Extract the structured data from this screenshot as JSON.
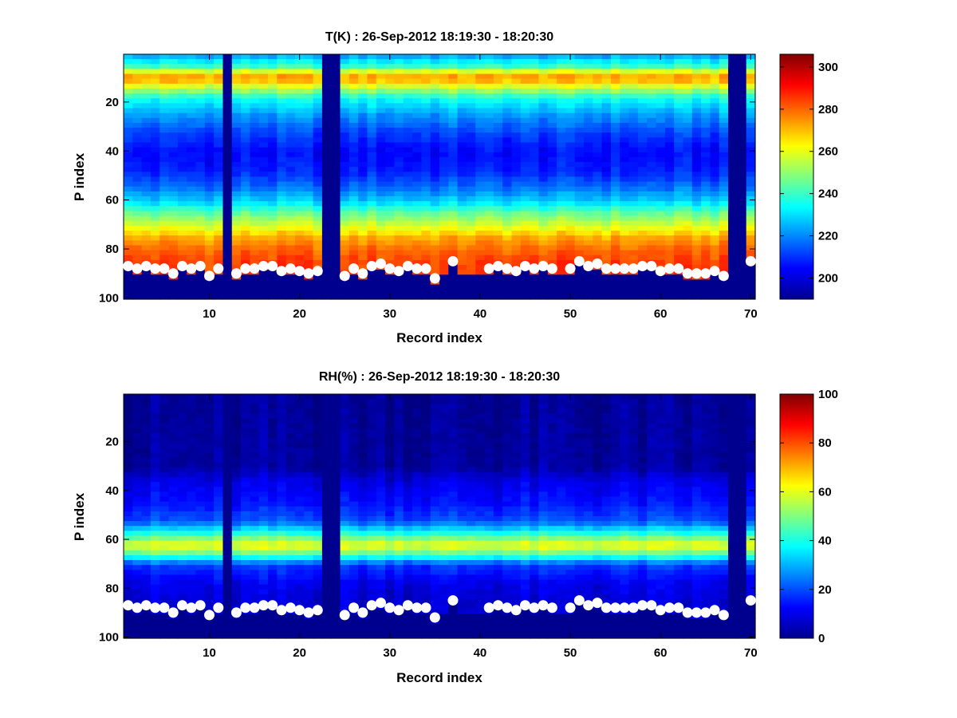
{
  "figure": {
    "panels": [
      "temperature",
      "humidity"
    ]
  },
  "chart_data": [
    {
      "type": "heatmap",
      "title": "T(K) : 26-Sep-2012 18:19:30 - 18:20:30",
      "xlabel": "Record index",
      "ylabel": "P index",
      "xlim": [
        0.5,
        70.5
      ],
      "ylim": [
        100.5,
        0.5
      ],
      "xticks": [
        10,
        20,
        30,
        40,
        50,
        60,
        70
      ],
      "yticks": [
        20,
        40,
        60,
        80,
        100
      ],
      "colormap": "jet",
      "clim": [
        190,
        306
      ],
      "colorbar_ticks": [
        200,
        220,
        240,
        260,
        280,
        300
      ],
      "missing_records": [
        12,
        23,
        24,
        68,
        69
      ],
      "surface_markers": [
        {
          "record": 1,
          "p": 87
        },
        {
          "record": 2,
          "p": 88
        },
        {
          "record": 3,
          "p": 87
        },
        {
          "record": 4,
          "p": 88
        },
        {
          "record": 5,
          "p": 88
        },
        {
          "record": 6,
          "p": 90
        },
        {
          "record": 7,
          "p": 87
        },
        {
          "record": 8,
          "p": 88
        },
        {
          "record": 9,
          "p": 87
        },
        {
          "record": 10,
          "p": 91
        },
        {
          "record": 11,
          "p": 88
        },
        {
          "record": 13,
          "p": 90
        },
        {
          "record": 14,
          "p": 88
        },
        {
          "record": 15,
          "p": 88
        },
        {
          "record": 16,
          "p": 87
        },
        {
          "record": 17,
          "p": 87
        },
        {
          "record": 18,
          "p": 89
        },
        {
          "record": 19,
          "p": 88
        },
        {
          "record": 20,
          "p": 89
        },
        {
          "record": 21,
          "p": 90
        },
        {
          "record": 22,
          "p": 89
        },
        {
          "record": 25,
          "p": 91
        },
        {
          "record": 26,
          "p": 88
        },
        {
          "record": 27,
          "p": 90
        },
        {
          "record": 28,
          "p": 87
        },
        {
          "record": 29,
          "p": 86
        },
        {
          "record": 30,
          "p": 88
        },
        {
          "record": 31,
          "p": 89
        },
        {
          "record": 32,
          "p": 87
        },
        {
          "record": 33,
          "p": 88
        },
        {
          "record": 34,
          "p": 88
        },
        {
          "record": 35,
          "p": 92
        },
        {
          "record": 37,
          "p": 85
        },
        {
          "record": 41,
          "p": 88
        },
        {
          "record": 42,
          "p": 87
        },
        {
          "record": 43,
          "p": 88
        },
        {
          "record": 44,
          "p": 89
        },
        {
          "record": 45,
          "p": 87
        },
        {
          "record": 46,
          "p": 88
        },
        {
          "record": 47,
          "p": 87
        },
        {
          "record": 48,
          "p": 88
        },
        {
          "record": 50,
          "p": 88
        },
        {
          "record": 51,
          "p": 85
        },
        {
          "record": 52,
          "p": 87
        },
        {
          "record": 53,
          "p": 86
        },
        {
          "record": 54,
          "p": 88
        },
        {
          "record": 55,
          "p": 88
        },
        {
          "record": 56,
          "p": 88
        },
        {
          "record": 57,
          "p": 88
        },
        {
          "record": 58,
          "p": 87
        },
        {
          "record": 59,
          "p": 87
        },
        {
          "record": 60,
          "p": 89
        },
        {
          "record": 61,
          "p": 88
        },
        {
          "record": 62,
          "p": 88
        },
        {
          "record": 63,
          "p": 90
        },
        {
          "record": 64,
          "p": 90
        },
        {
          "record": 65,
          "p": 90
        },
        {
          "record": 66,
          "p": 89
        },
        {
          "record": 67,
          "p": 91
        },
        {
          "record": 70,
          "p": 85
        }
      ],
      "profile": {
        "description_levels": [
          {
            "p": 1,
            "value": 225
          },
          {
            "p": 5,
            "value": 240
          },
          {
            "p": 8,
            "value": 268
          },
          {
            "p": 10,
            "value": 275
          },
          {
            "p": 13,
            "value": 258
          },
          {
            "p": 18,
            "value": 235
          },
          {
            "p": 25,
            "value": 222
          },
          {
            "p": 32,
            "value": 212
          },
          {
            "p": 40,
            "value": 205
          },
          {
            "p": 48,
            "value": 208
          },
          {
            "p": 55,
            "value": 218
          },
          {
            "p": 60,
            "value": 228
          },
          {
            "p": 65,
            "value": 245
          },
          {
            "p": 70,
            "value": 258
          },
          {
            "p": 75,
            "value": 272
          },
          {
            "p": 80,
            "value": 280
          },
          {
            "p": 86,
            "value": 285
          }
        ]
      }
    },
    {
      "type": "heatmap",
      "title": "RH(%) : 26-Sep-2012 18:19:30 - 18:20:30",
      "xlabel": "Record index",
      "ylabel": "P index",
      "xlim": [
        0.5,
        70.5
      ],
      "ylim": [
        100.5,
        0.5
      ],
      "xticks": [
        10,
        20,
        30,
        40,
        50,
        60,
        70
      ],
      "yticks": [
        20,
        40,
        60,
        80,
        100
      ],
      "colormap": "jet",
      "clim": [
        0,
        100
      ],
      "colorbar_ticks": [
        0,
        20,
        40,
        60,
        80,
        100
      ],
      "missing_records": [
        12,
        23,
        24,
        68,
        69
      ],
      "surface_markers": [
        {
          "record": 1,
          "p": 87
        },
        {
          "record": 2,
          "p": 88
        },
        {
          "record": 3,
          "p": 87
        },
        {
          "record": 4,
          "p": 88
        },
        {
          "record": 5,
          "p": 88
        },
        {
          "record": 6,
          "p": 90
        },
        {
          "record": 7,
          "p": 87
        },
        {
          "record": 8,
          "p": 88
        },
        {
          "record": 9,
          "p": 87
        },
        {
          "record": 10,
          "p": 91
        },
        {
          "record": 11,
          "p": 88
        },
        {
          "record": 13,
          "p": 90
        },
        {
          "record": 14,
          "p": 88
        },
        {
          "record": 15,
          "p": 88
        },
        {
          "record": 16,
          "p": 87
        },
        {
          "record": 17,
          "p": 87
        },
        {
          "record": 18,
          "p": 89
        },
        {
          "record": 19,
          "p": 88
        },
        {
          "record": 20,
          "p": 89
        },
        {
          "record": 21,
          "p": 90
        },
        {
          "record": 22,
          "p": 89
        },
        {
          "record": 25,
          "p": 91
        },
        {
          "record": 26,
          "p": 88
        },
        {
          "record": 27,
          "p": 90
        },
        {
          "record": 28,
          "p": 87
        },
        {
          "record": 29,
          "p": 86
        },
        {
          "record": 30,
          "p": 88
        },
        {
          "record": 31,
          "p": 89
        },
        {
          "record": 32,
          "p": 87
        },
        {
          "record": 33,
          "p": 88
        },
        {
          "record": 34,
          "p": 88
        },
        {
          "record": 35,
          "p": 92
        },
        {
          "record": 37,
          "p": 85
        },
        {
          "record": 41,
          "p": 88
        },
        {
          "record": 42,
          "p": 87
        },
        {
          "record": 43,
          "p": 88
        },
        {
          "record": 44,
          "p": 89
        },
        {
          "record": 45,
          "p": 87
        },
        {
          "record": 46,
          "p": 88
        },
        {
          "record": 47,
          "p": 87
        },
        {
          "record": 48,
          "p": 88
        },
        {
          "record": 50,
          "p": 88
        },
        {
          "record": 51,
          "p": 85
        },
        {
          "record": 52,
          "p": 87
        },
        {
          "record": 53,
          "p": 86
        },
        {
          "record": 54,
          "p": 88
        },
        {
          "record": 55,
          "p": 88
        },
        {
          "record": 56,
          "p": 88
        },
        {
          "record": 57,
          "p": 88
        },
        {
          "record": 58,
          "p": 87
        },
        {
          "record": 59,
          "p": 87
        },
        {
          "record": 60,
          "p": 89
        },
        {
          "record": 61,
          "p": 88
        },
        {
          "record": 62,
          "p": 88
        },
        {
          "record": 63,
          "p": 90
        },
        {
          "record": 64,
          "p": 90
        },
        {
          "record": 65,
          "p": 90
        },
        {
          "record": 66,
          "p": 89
        },
        {
          "record": 67,
          "p": 91
        },
        {
          "record": 70,
          "p": 85
        }
      ],
      "profile": {
        "description_levels": [
          {
            "p": 1,
            "value": 2
          },
          {
            "p": 30,
            "value": 3
          },
          {
            "p": 36,
            "value": 10
          },
          {
            "p": 45,
            "value": 14
          },
          {
            "p": 52,
            "value": 20
          },
          {
            "p": 57,
            "value": 40
          },
          {
            "p": 62,
            "value": 62
          },
          {
            "p": 66,
            "value": 45
          },
          {
            "p": 70,
            "value": 18
          },
          {
            "p": 78,
            "value": 10
          },
          {
            "p": 86,
            "value": 8
          }
        ]
      }
    }
  ]
}
